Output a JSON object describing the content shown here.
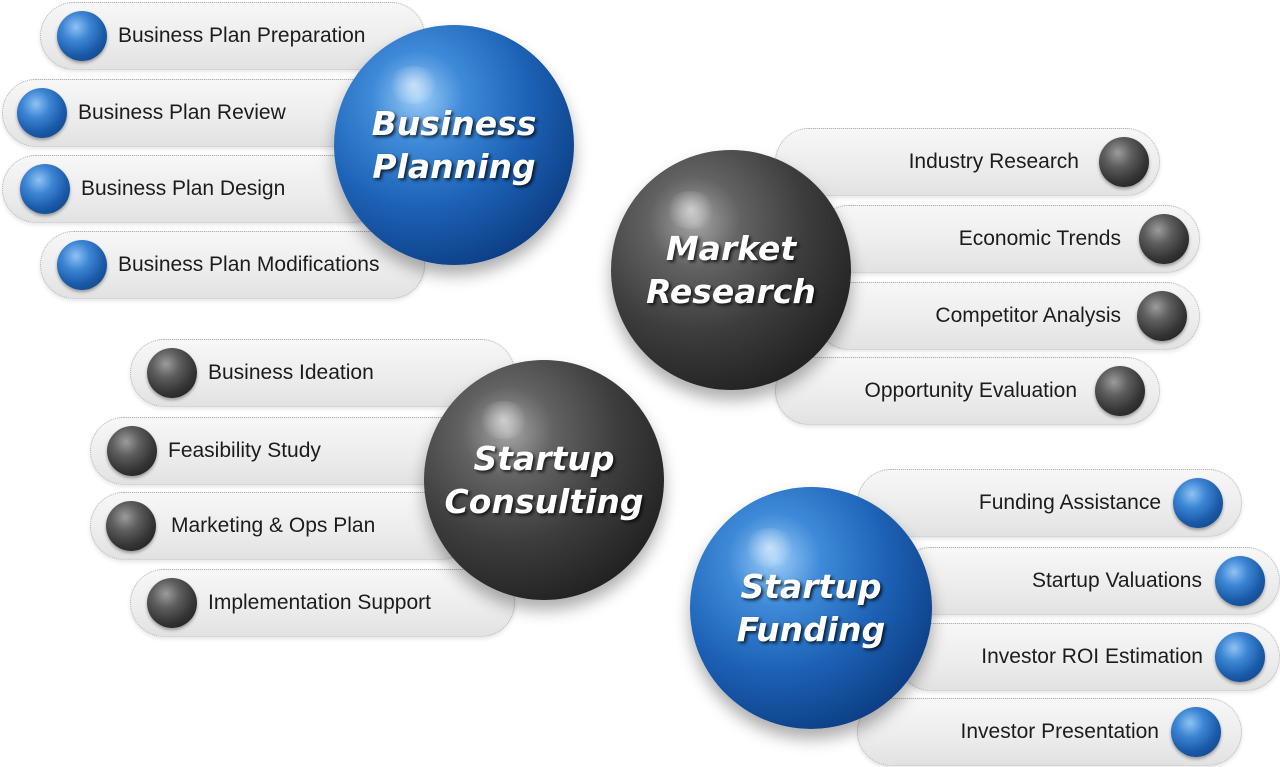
{
  "groups": [
    {
      "title": [
        "Business",
        "Planning"
      ],
      "items": [
        "Business Plan Preparation",
        "Business Plan Review",
        "Business Plan Design",
        "Business Plan Modifications"
      ]
    },
    {
      "title": [
        "Market",
        "Research"
      ],
      "items": [
        "Industry Research",
        "Economic Trends",
        "Competitor Analysis",
        "Opportunity Evaluation"
      ]
    },
    {
      "title": [
        "Startup",
        "Consulting"
      ],
      "items": [
        "Business Ideation",
        "Feasibility Study",
        "Marketing & Ops Plan",
        "Implementation Support"
      ]
    },
    {
      "title": [
        "Startup",
        "Funding"
      ],
      "items": [
        "Funding Assistance",
        "Startup Valuations",
        "Investor ROI Estimation",
        "Investor Presentation"
      ]
    }
  ],
  "colors": {
    "blue": "#1d62b6",
    "gray": "#3d3d3d"
  }
}
